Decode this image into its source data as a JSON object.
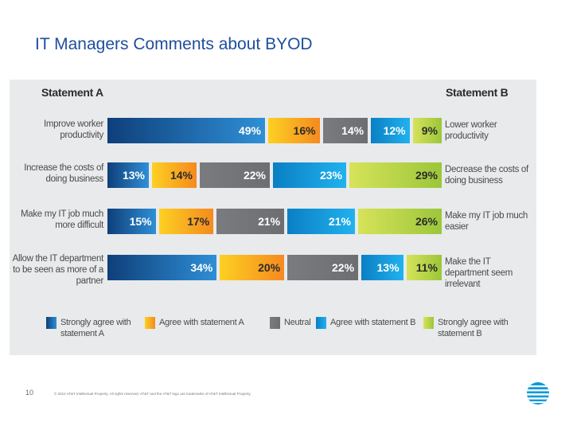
{
  "page": {
    "title": "IT Managers Comments about BYOD",
    "slide_number": "10",
    "copyright": "© 2012 AT&T Intellectual Property. All rights reserved. AT&T and the AT&T logo are trademarks of AT&T Intellectual Property.",
    "logo": "att-globe-icon"
  },
  "chart_data": {
    "type": "bar",
    "orientation": "horizontal-stacked-100",
    "header_a": "Statement A",
    "header_b": "Statement B",
    "series": [
      {
        "name": "Strongly agree with statement A",
        "color": "#1e5fa3"
      },
      {
        "name": "Agree with statement A",
        "color": "#fdb913"
      },
      {
        "name": "Neutral",
        "color": "#6d6e71"
      },
      {
        "name": "Agree with statement B",
        "color": "#0fa0e3"
      },
      {
        "name": "Strongly agree with statement B",
        "color": "#b5d334"
      }
    ],
    "rows": [
      {
        "statement_a": "Improve worker productivity",
        "statement_b": "Lower worker productivity",
        "values": [
          49,
          16,
          14,
          12,
          9
        ],
        "labels": [
          "49%",
          "16%",
          "14%",
          "12%",
          "9%"
        ]
      },
      {
        "statement_a": "Increase the costs of doing business",
        "statement_b": "Decrease the costs of doing business",
        "values": [
          13,
          14,
          22,
          23,
          29
        ],
        "labels": [
          "13%",
          "14%",
          "22%",
          "23%",
          "29%"
        ]
      },
      {
        "statement_a": "Make my IT job much more difficult",
        "statement_b": "Make my IT job much easier",
        "values": [
          15,
          17,
          21,
          21,
          26
        ],
        "labels": [
          "15%",
          "17%",
          "21%",
          "21%",
          "26%"
        ]
      },
      {
        "statement_a": "Allow the IT department to be seen as more of a partner",
        "statement_b": "Make the IT department seem irrelevant",
        "values": [
          34,
          20,
          22,
          13,
          11
        ],
        "labels": [
          "34%",
          "20%",
          "22%",
          "13%",
          "11%"
        ]
      }
    ],
    "legend": [
      "Strongly agree with statement A",
      "Agree with statement A",
      "Neutral",
      "Agree with statement B",
      "Strongly agree with statement B"
    ]
  }
}
